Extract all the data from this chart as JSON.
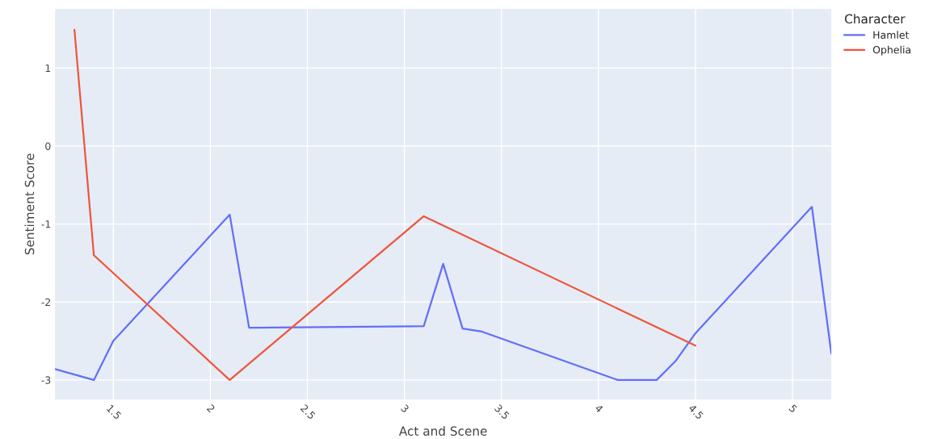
{
  "chart_data": {
    "type": "line",
    "xlabel": "Act and Scene",
    "ylabel": "Sentiment Score",
    "legend_title": "Character",
    "legend": "right",
    "grid": true,
    "xlim": [
      1.2,
      5.2
    ],
    "xticks": [
      1.5,
      2,
      2.5,
      3,
      3.5,
      4,
      4.5,
      5
    ],
    "ylim": [
      -3.25,
      1.76
    ],
    "yticks": [
      1,
      0,
      -1,
      -2,
      -3
    ],
    "series": [
      {
        "name": "Hamlet",
        "color": "#636efa",
        "x": [
          1.2,
          1.4,
          1.5,
          2.1,
          2.2,
          3.1,
          3.2,
          3.3,
          3.4,
          4.1,
          4.3,
          4.4,
          4.5,
          5.1,
          5.2
        ],
        "values": [
          -2.86,
          -3.0,
          -2.5,
          -0.88,
          -2.33,
          -2.31,
          -1.51,
          -2.34,
          -2.38,
          -3.0,
          -3.0,
          -2.75,
          -2.4,
          -0.78,
          -2.66
        ]
      },
      {
        "name": "Ophelia",
        "color": "#ef553b",
        "x": [
          1.3,
          1.4,
          2.1,
          3.1,
          4.5
        ],
        "values": [
          1.49,
          -1.4,
          -3.0,
          -0.9,
          -2.56
        ]
      }
    ]
  }
}
